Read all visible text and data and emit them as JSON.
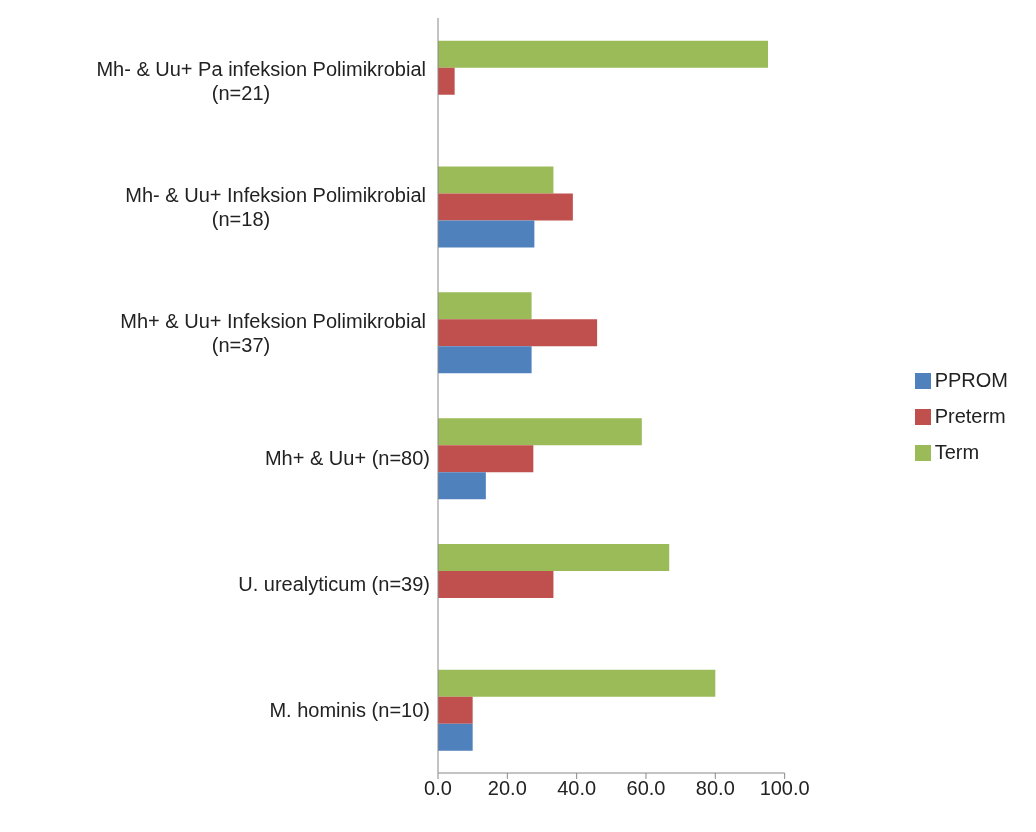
{
  "chart_data": {
    "type": "bar",
    "orientation": "horizontal",
    "categories": [
      "Mh- & Uu+ Pa infeksion Polimikrobial (n=21)",
      "Mh- & Uu+ Infeksion Polimikrobial (n=18)",
      "Mh+ & Uu+ Infeksion Polimikrobial (n=37)",
      "Mh+ & Uu+ (n=80)",
      "U. urealyticum (n=39)",
      "M. hominis  (n=10)"
    ],
    "series": [
      {
        "name": "Term",
        "color": "#9bbb59",
        "values": [
          95.2,
          33.3,
          27.0,
          58.8,
          66.7,
          80.0
        ]
      },
      {
        "name": "Preterm",
        "color": "#c0504d",
        "values": [
          4.8,
          38.9,
          45.9,
          27.5,
          33.3,
          10.0
        ]
      },
      {
        "name": "PPROM",
        "color": "#4f81bd",
        "values": [
          0,
          27.8,
          27.0,
          13.8,
          0,
          10.0
        ]
      }
    ],
    "xlim": [
      0,
      100
    ],
    "xticks": [
      {
        "value": 0,
        "label": "0.0"
      },
      {
        "value": 20,
        "label": "20.0"
      },
      {
        "value": 40,
        "label": "40.0"
      },
      {
        "value": 60,
        "label": "60.0"
      },
      {
        "value": 80,
        "label": "80.0"
      },
      {
        "value": 100,
        "label": "100.0"
      }
    ],
    "grid": false,
    "legend": "right"
  }
}
